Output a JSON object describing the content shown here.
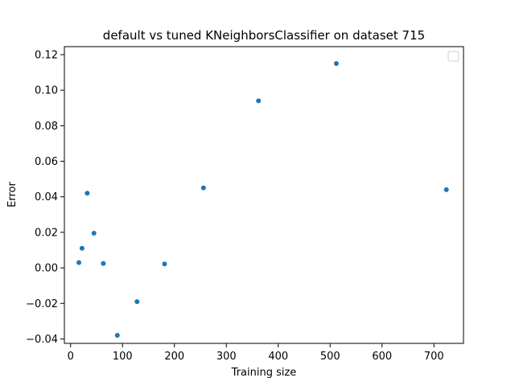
{
  "chart_data": {
    "type": "scatter",
    "title": "default vs tuned KNeighborsClassifier on dataset 715",
    "xlabel": "Training size",
    "ylabel": "Error",
    "xlim": [
      -12,
      757
    ],
    "ylim": [
      -0.0425,
      0.1245
    ],
    "xticks": [
      0,
      100,
      200,
      300,
      400,
      500,
      600,
      700
    ],
    "yticks": [
      -0.04,
      -0.02,
      0.0,
      0.02,
      0.04,
      0.06,
      0.08,
      0.1,
      0.12
    ],
    "xtick_labels": [
      "0",
      "100",
      "200",
      "300",
      "400",
      "500",
      "600",
      "700"
    ],
    "ytick_labels": [
      "−0.04",
      "−0.02",
      "0.00",
      "0.02",
      "0.04",
      "0.06",
      "0.08",
      "0.10",
      "0.12"
    ],
    "grid": false,
    "legend": "upper right (empty)",
    "marker_color": "#1f77b4",
    "points": [
      {
        "x": 16,
        "y": 0.003
      },
      {
        "x": 22,
        "y": 0.011
      },
      {
        "x": 32,
        "y": 0.042
      },
      {
        "x": 45,
        "y": 0.0195
      },
      {
        "x": 63,
        "y": 0.0025
      },
      {
        "x": 90,
        "y": -0.038
      },
      {
        "x": 128,
        "y": -0.019
      },
      {
        "x": 181,
        "y": 0.0022
      },
      {
        "x": 256,
        "y": 0.045
      },
      {
        "x": 362,
        "y": 0.094
      },
      {
        "x": 512,
        "y": 0.115
      },
      {
        "x": 724,
        "y": 0.044
      }
    ]
  }
}
